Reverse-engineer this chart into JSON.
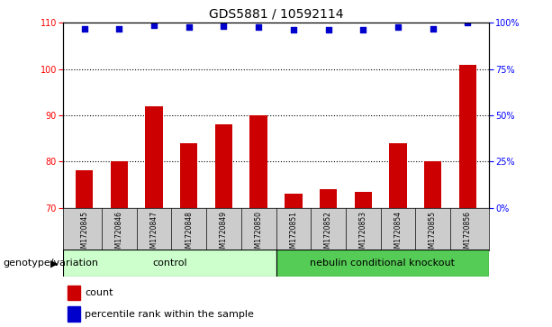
{
  "title": "GDS5881 / 10592114",
  "samples": [
    "GSM1720845",
    "GSM1720846",
    "GSM1720847",
    "GSM1720848",
    "GSM1720849",
    "GSM1720850",
    "GSM1720851",
    "GSM1720852",
    "GSM1720853",
    "GSM1720854",
    "GSM1720855",
    "GSM1720856"
  ],
  "count_values": [
    78,
    80,
    92,
    84,
    88,
    90,
    73,
    74,
    73.5,
    84,
    80,
    101
  ],
  "percentile_values": [
    97,
    97,
    98.5,
    98,
    98.2,
    98,
    96.5,
    96.5,
    96.5,
    98,
    97,
    100
  ],
  "ylim_left": [
    70,
    110
  ],
  "ylim_right": [
    0,
    100
  ],
  "yticks_left": [
    70,
    80,
    90,
    100,
    110
  ],
  "yticks_right": [
    0,
    25,
    50,
    75,
    100
  ],
  "control_label": "control",
  "knockout_label": "nebulin conditional knockout",
  "group_label": "genotype/variation",
  "legend_count": "count",
  "legend_percentile": "percentile rank within the sample",
  "bar_color": "#cc0000",
  "dot_color": "#0000cc",
  "control_bg": "#ccffcc",
  "knockout_bg": "#55cc55",
  "sample_bg": "#cccccc",
  "bar_width": 0.5,
  "title_fontsize": 10,
  "axis_fontsize": 7,
  "label_fontsize": 8,
  "sample_fontsize": 5.5
}
